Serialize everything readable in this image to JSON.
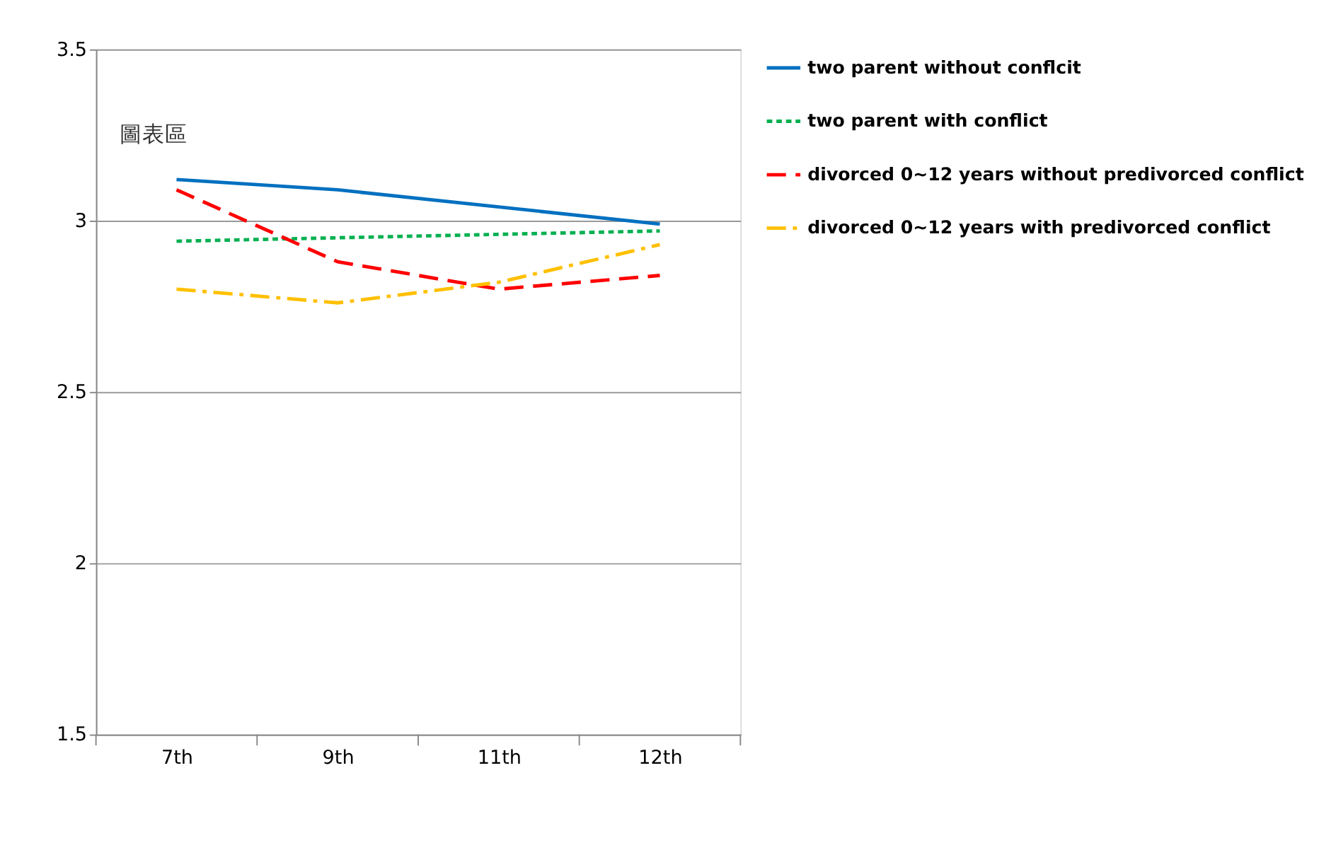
{
  "chart_data": {
    "type": "line",
    "categories": [
      "7th",
      "9th",
      "11th",
      "12th"
    ],
    "series": [
      {
        "name": "two parent without conflcit",
        "color": "#0070c0",
        "line_style": "solid",
        "values": [
          3.12,
          3.09,
          3.04,
          2.99
        ]
      },
      {
        "name": "two parent with conflict",
        "color": "#00b050",
        "line_style": "dotted",
        "values": [
          2.94,
          2.95,
          2.96,
          2.97
        ]
      },
      {
        "name": "divorced 0~12 years without predivorced conflict",
        "color": "#ff0000",
        "line_style": "dashed",
        "values": [
          3.09,
          2.88,
          2.8,
          2.84
        ]
      },
      {
        "name": "divorced 0~12 years with predivorced conflict",
        "color": "#ffc000",
        "line_style": "dashdot",
        "values": [
          2.8,
          2.76,
          2.82,
          2.93
        ]
      }
    ],
    "ylim": [
      1.5,
      3.5
    ],
    "yticks": [
      1.5,
      2,
      2.5,
      3,
      3.5
    ],
    "grid": "y",
    "legend": "right",
    "marker": "none",
    "annotations": [
      "圖表區"
    ]
  }
}
